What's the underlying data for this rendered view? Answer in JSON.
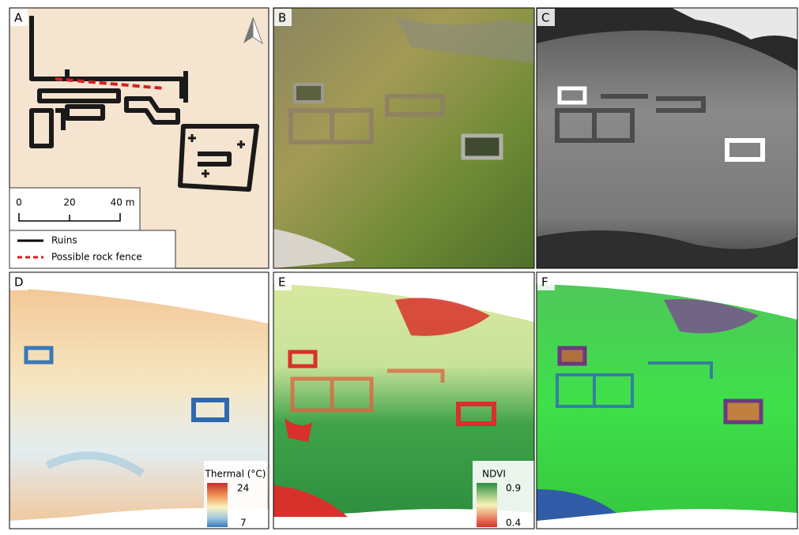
{
  "panels": [
    {
      "label": "A"
    },
    {
      "label": "B"
    },
    {
      "label": "C"
    },
    {
      "label": "D"
    },
    {
      "label": "E"
    },
    {
      "label": "F"
    }
  ],
  "scale_bar": {
    "labels": [
      0,
      20,
      "40 m"
    ]
  },
  "legend": {
    "items": [
      "Ruins",
      "Possible rock fence"
    ]
  },
  "thermal_colorbar": {
    "title": "Thermal (°C)",
    "max": 24,
    "min": 7
  },
  "ndvi_colorbar": {
    "title": "NDVI",
    "max": 0.9,
    "min": 0.4
  }
}
